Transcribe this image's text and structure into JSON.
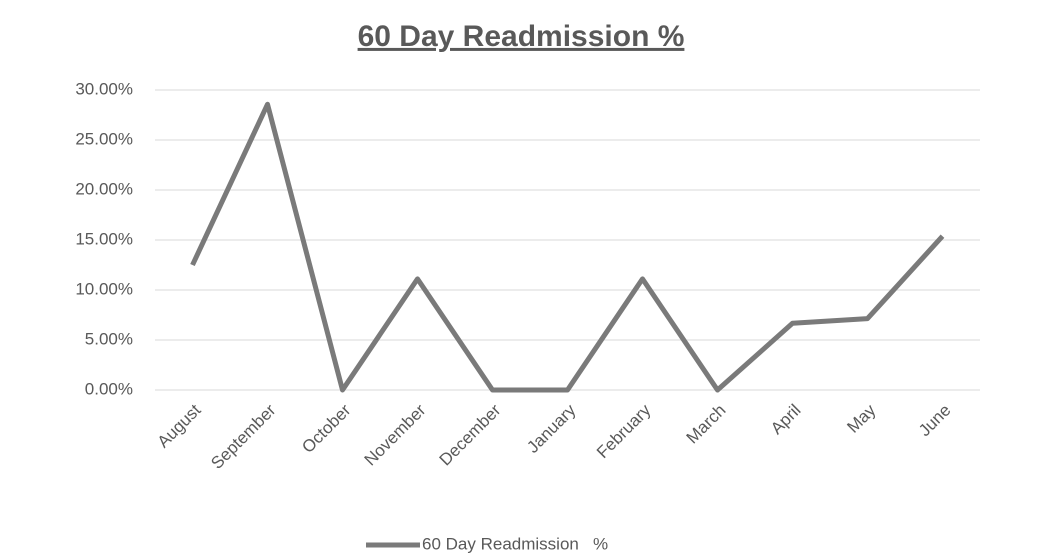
{
  "chart_data": {
    "type": "line",
    "title": "60 Day Readmission %",
    "categories": [
      "August",
      "September",
      "October",
      "November",
      "December",
      "January",
      "February",
      "March",
      "April",
      "May",
      "June"
    ],
    "series": [
      {
        "name": "60 Day Readmission   %",
        "color": "#7a7a7a",
        "values": [
          12.5,
          28.57,
          0,
          11.11,
          0,
          0,
          11.11,
          0,
          6.67,
          7.14,
          15.38
        ]
      }
    ],
    "ylim": [
      0,
      30
    ],
    "yticks": [
      {
        "value": 0,
        "label": "0.00%"
      },
      {
        "value": 5,
        "label": "5.00%"
      },
      {
        "value": 10,
        "label": "10.00%"
      },
      {
        "value": 15,
        "label": "15.00%"
      },
      {
        "value": 20,
        "label": "20.00%"
      },
      {
        "value": 25,
        "label": "25.00%"
      },
      {
        "value": 30,
        "label": "30.00%"
      }
    ],
    "grid": true,
    "legend": "bottom"
  }
}
